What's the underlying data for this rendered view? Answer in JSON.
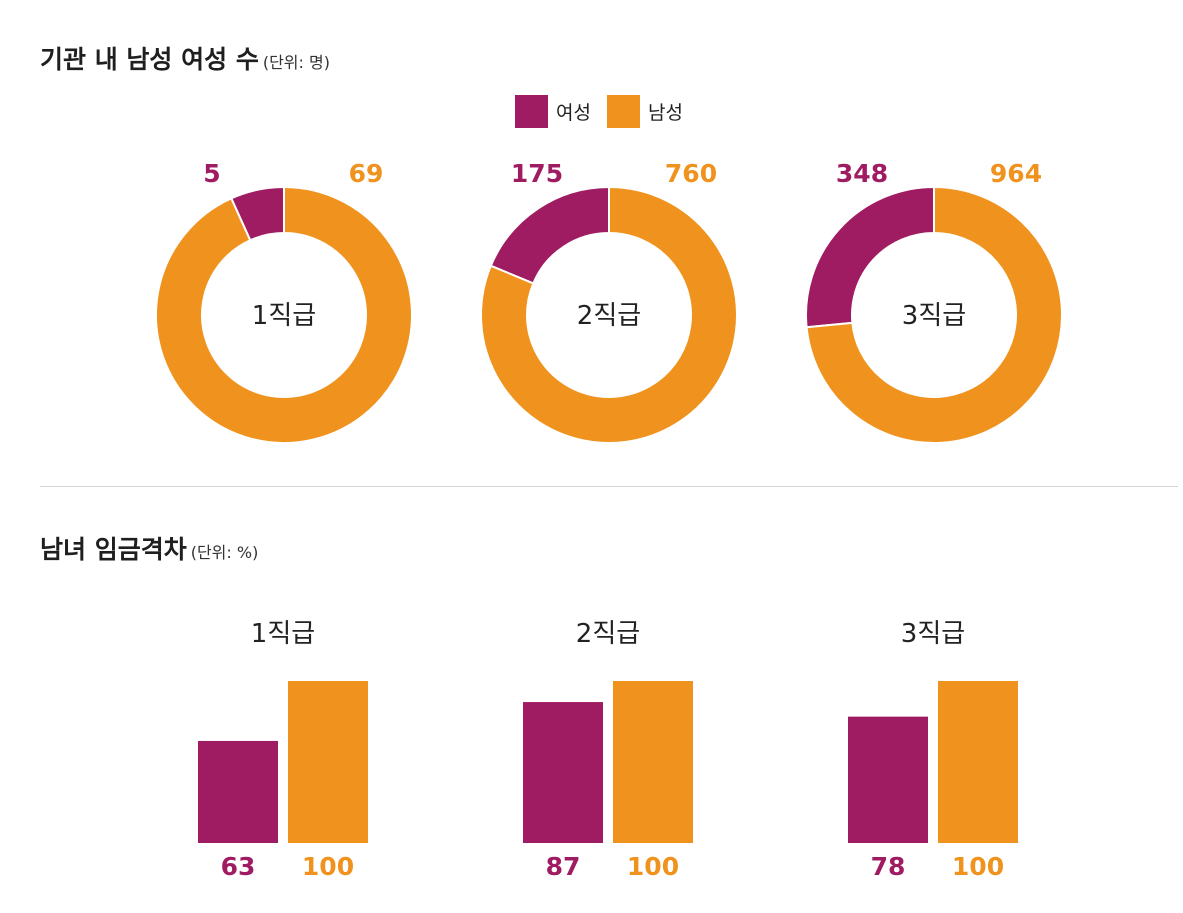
{
  "colors": {
    "female": "#a01c62",
    "male": "#f0931e"
  },
  "headcount": {
    "title": "기관 내 남성 여성 수",
    "unit": "(단위: 명)"
  },
  "wage": {
    "title": "남녀 임금격차",
    "unit": "(단위: %)"
  },
  "legend": {
    "female": "여성",
    "male": "남성"
  },
  "chart_data": [
    {
      "type": "pie",
      "subtype": "donut",
      "title": "기관 내 남성 여성 수 (단위: 명)",
      "legend": [
        "여성",
        "남성"
      ],
      "charts": [
        {
          "category": "1직급",
          "female": 5,
          "male": 69
        },
        {
          "category": "2직급",
          "female": 175,
          "male": 760
        },
        {
          "category": "3직급",
          "female": 348,
          "male": 964
        }
      ]
    },
    {
      "type": "bar",
      "title": "남녀 임금격차 (단위: %)",
      "categories": [
        "1직급",
        "2직급",
        "3직급"
      ],
      "series": [
        {
          "name": "여성",
          "values": [
            63,
            87,
            78
          ]
        },
        {
          "name": "남성",
          "values": [
            100,
            100,
            100
          ]
        }
      ],
      "ylim": [
        0,
        100
      ]
    }
  ]
}
